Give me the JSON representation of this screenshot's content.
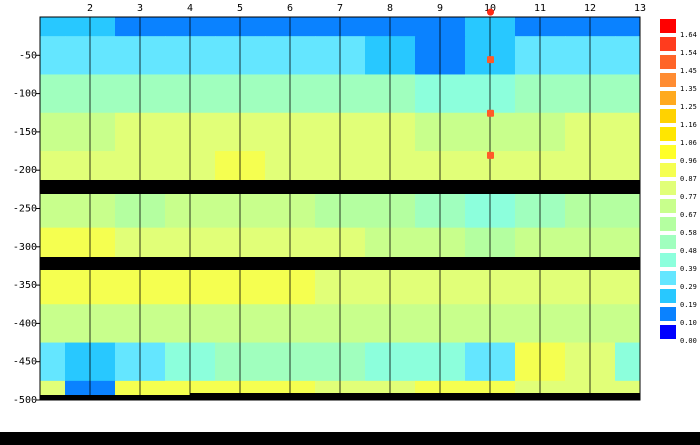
{
  "chart_data": {
    "type": "contour",
    "x": [
      1,
      2,
      3,
      4,
      5,
      6,
      7,
      8,
      9,
      10,
      11,
      12,
      13
    ],
    "y": [
      0,
      -50,
      -100,
      -150,
      -200,
      -250,
      -300,
      -350,
      -400,
      -450,
      -500
    ],
    "z": [
      [
        0.25,
        0.22,
        0.15,
        0.12,
        0.12,
        0.12,
        0.12,
        0.14,
        0.18,
        0.2,
        0.18,
        0.12,
        0.1
      ],
      [
        0.3,
        0.3,
        0.3,
        0.32,
        0.3,
        0.3,
        0.3,
        0.28,
        0.12,
        0.2,
        0.3,
        0.3,
        0.3
      ],
      [
        0.55,
        0.55,
        0.5,
        0.52,
        0.5,
        0.5,
        0.5,
        0.5,
        0.45,
        0.45,
        0.5,
        0.55,
        0.55
      ],
      [
        0.75,
        0.75,
        0.78,
        0.8,
        0.8,
        0.8,
        0.78,
        0.78,
        0.75,
        0.72,
        0.75,
        0.78,
        0.8
      ],
      [
        0.85,
        0.82,
        0.85,
        0.85,
        0.88,
        0.85,
        0.85,
        0.85,
        0.82,
        0.8,
        0.82,
        0.85,
        0.85
      ],
      [
        0.7,
        0.68,
        0.65,
        0.68,
        0.7,
        0.68,
        0.65,
        0.6,
        0.5,
        0.45,
        0.55,
        0.6,
        0.6
      ],
      [
        0.9,
        0.88,
        0.85,
        0.82,
        0.8,
        0.78,
        0.78,
        0.75,
        0.7,
        0.65,
        0.68,
        0.7,
        0.7
      ],
      [
        0.9,
        0.9,
        0.88,
        0.88,
        0.88,
        0.88,
        0.85,
        0.85,
        0.85,
        0.85,
        0.85,
        0.85,
        0.85
      ],
      [
        0.75,
        0.72,
        0.7,
        0.7,
        0.7,
        0.72,
        0.7,
        0.7,
        0.7,
        0.68,
        0.7,
        0.7,
        0.7
      ],
      [
        0.3,
        0.25,
        0.35,
        0.45,
        0.55,
        0.5,
        0.5,
        0.45,
        0.4,
        0.35,
        0.88,
        0.85,
        0.4
      ],
      [
        0.85,
        0.15,
        0.9,
        0.9,
        0.88,
        0.88,
        0.85,
        0.85,
        0.9,
        0.9,
        0.85,
        0.85,
        0.85
      ]
    ],
    "xlim": [
      1,
      13
    ],
    "ylim": [
      -500,
      0
    ],
    "xticks": [
      2,
      3,
      4,
      5,
      6,
      7,
      8,
      9,
      10,
      11,
      12,
      13
    ],
    "yticks": [
      -50,
      -100,
      -150,
      -200,
      -250,
      -300,
      -350,
      -400,
      -450,
      -500
    ],
    "grid": true,
    "levels": [
      1.64,
      1.54,
      1.45,
      1.35,
      1.25,
      1.16,
      1.06,
      0.96,
      0.87,
      0.77,
      0.67,
      0.58,
      0.48,
      0.39,
      0.29,
      0.19,
      {
        "value": 0.1,
        "label": "0.10"
      },
      {
        "value": 0,
        "label": "0.00"
      }
    ],
    "level_colors": [
      "#ff0000",
      "#ff3c1e",
      "#ff6428",
      "#ff8c32",
      "#ffaa1e",
      "#ffd200",
      "#ffe600",
      "#ffff28",
      "#f5ff50",
      "#e1ff78",
      "#c8ff8c",
      "#b4ffa0",
      "#a0ffbe",
      "#8cffdc",
      "#64e6ff",
      "#28c8ff",
      "#0a82ff",
      "#0000ff"
    ],
    "points": {
      "x": [
        10,
        10,
        10,
        10
      ],
      "y": [
        7,
        -55,
        -125,
        -180
      ],
      "colors": [
        "#ff2a14",
        "#ff5a28",
        "#ff5a28",
        "#ff5a28"
      ]
    }
  }
}
